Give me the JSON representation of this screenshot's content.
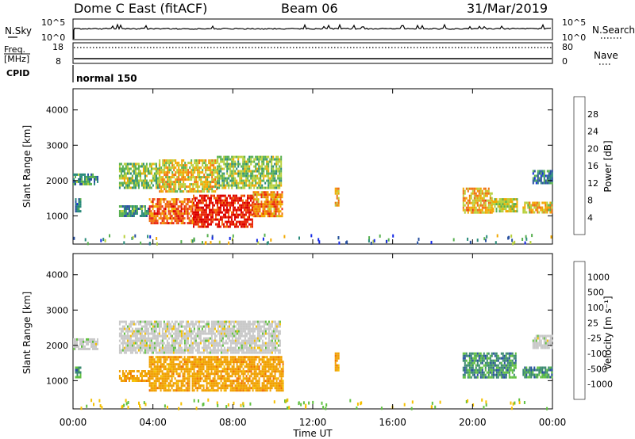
{
  "header": {
    "station": "Dome C East (fitACF)",
    "beam": "Beam 06",
    "date": "31/Mar/2019"
  },
  "nsky_panel": {
    "left_label": "N.Sky",
    "right_label": "N.Search",
    "left_ticks": [
      "10^5",
      "10^0"
    ],
    "right_ticks": [
      "10^5",
      "10^0"
    ]
  },
  "freq_panel": {
    "left_label_line1": "Freq.",
    "left_label_line2": "[MHz]",
    "right_label": "Nave",
    "left_ticks": [
      "18",
      "8"
    ],
    "right_ticks": [
      "80",
      "0"
    ]
  },
  "cpid": {
    "label": "CPID",
    "mode": "normal 150"
  },
  "colors": {
    "power_scale": [
      "#1428e6",
      "#2850a0",
      "#2a8a7a",
      "#58b050",
      "#b8d03c",
      "#f2a800",
      "#f07010",
      "#e82a10",
      "#dc0000"
    ],
    "velocity_scale": [
      "#e80000",
      "#f07000",
      "#f0a000",
      "#f5c000",
      "#c8c8c8",
      "#60c040",
      "#3a8a70",
      "#2850a0",
      "#1438c8"
    ]
  },
  "chart_data": [
    {
      "type": "heatmap",
      "name": "power",
      "ylabel": "Slant Range [km]",
      "yticks": [
        "1000",
        "2000",
        "3000",
        "4000"
      ],
      "ylim": [
        200,
        4600
      ],
      "xlim": [
        0,
        24
      ],
      "colorbar_label": "Power [dB]",
      "colorbar_ticks": [
        "4",
        "8",
        "12",
        "16",
        "20",
        "24",
        "28"
      ],
      "colorbar_range": [
        0,
        32
      ],
      "regions": [
        {
          "t0": 0.0,
          "t1": 1.2,
          "r0": 1900,
          "r1": 2200,
          "value": 10
        },
        {
          "t0": 0.1,
          "t1": 0.4,
          "r0": 1100,
          "r1": 1500,
          "value": 8
        },
        {
          "t0": 2.3,
          "t1": 4.3,
          "r0": 1800,
          "r1": 2500,
          "value": 14
        },
        {
          "t0": 4.3,
          "t1": 7.2,
          "r0": 1700,
          "r1": 2600,
          "value": 18
        },
        {
          "t0": 7.2,
          "t1": 10.4,
          "r0": 1800,
          "r1": 2700,
          "value": 14
        },
        {
          "t0": 2.3,
          "t1": 3.8,
          "r0": 1000,
          "r1": 1300,
          "value": 10
        },
        {
          "t0": 3.8,
          "t1": 6.0,
          "r0": 800,
          "r1": 1500,
          "value": 24
        },
        {
          "t0": 6.0,
          "t1": 9.0,
          "r0": 700,
          "r1": 1600,
          "value": 28
        },
        {
          "t0": 9.0,
          "t1": 10.5,
          "r0": 1000,
          "r1": 1700,
          "value": 22
        },
        {
          "t0": 13.1,
          "t1": 13.3,
          "r0": 1300,
          "r1": 1800,
          "value": 20
        },
        {
          "t0": 19.5,
          "t1": 21.0,
          "r0": 1100,
          "r1": 1800,
          "value": 20
        },
        {
          "t0": 21.0,
          "t1": 22.2,
          "r0": 1100,
          "r1": 1500,
          "value": 16
        },
        {
          "t0": 22.5,
          "t1": 24.0,
          "r0": 1100,
          "r1": 1400,
          "value": 18
        },
        {
          "t0": 23.0,
          "t1": 24.0,
          "r0": 1900,
          "r1": 2300,
          "value": 8
        }
      ]
    },
    {
      "type": "heatmap",
      "name": "velocity",
      "ylabel": "Slant Range [km]",
      "yticks": [
        "1000",
        "2000",
        "3000",
        "4000"
      ],
      "ylim": [
        200,
        4600
      ],
      "xlim": [
        0,
        24
      ],
      "colorbar_label": "Velocity [m s⁻¹]",
      "colorbar_ticks": [
        "-1000",
        "-500",
        "-100",
        "-25",
        "25",
        "100",
        "500",
        "1000"
      ],
      "regions": [
        {
          "t0": 0.0,
          "t1": 1.2,
          "r0": 1900,
          "r1": 2200,
          "value": 0
        },
        {
          "t0": 0.1,
          "t1": 0.4,
          "r0": 1100,
          "r1": 1400,
          "value": 200
        },
        {
          "t0": 2.3,
          "t1": 10.4,
          "r0": 1800,
          "r1": 2700,
          "value": 0
        },
        {
          "t0": 2.3,
          "t1": 3.8,
          "r0": 1000,
          "r1": 1300,
          "value": -300
        },
        {
          "t0": 3.8,
          "t1": 10.5,
          "r0": 700,
          "r1": 1700,
          "value": -300
        },
        {
          "t0": 13.1,
          "t1": 13.3,
          "r0": 1300,
          "r1": 1800,
          "value": -300
        },
        {
          "t0": 19.5,
          "t1": 22.2,
          "r0": 1100,
          "r1": 1800,
          "value": 200
        },
        {
          "t0": 22.5,
          "t1": 24.0,
          "r0": 1100,
          "r1": 1400,
          "value": 200
        },
        {
          "t0": 23.0,
          "t1": 24.0,
          "r0": 1900,
          "r1": 2300,
          "value": 0
        }
      ]
    }
  ],
  "time_axis": {
    "label": "Time UT",
    "ticks": [
      "00:00",
      "04:00",
      "08:00",
      "12:00",
      "16:00",
      "20:00",
      "00:00"
    ]
  }
}
